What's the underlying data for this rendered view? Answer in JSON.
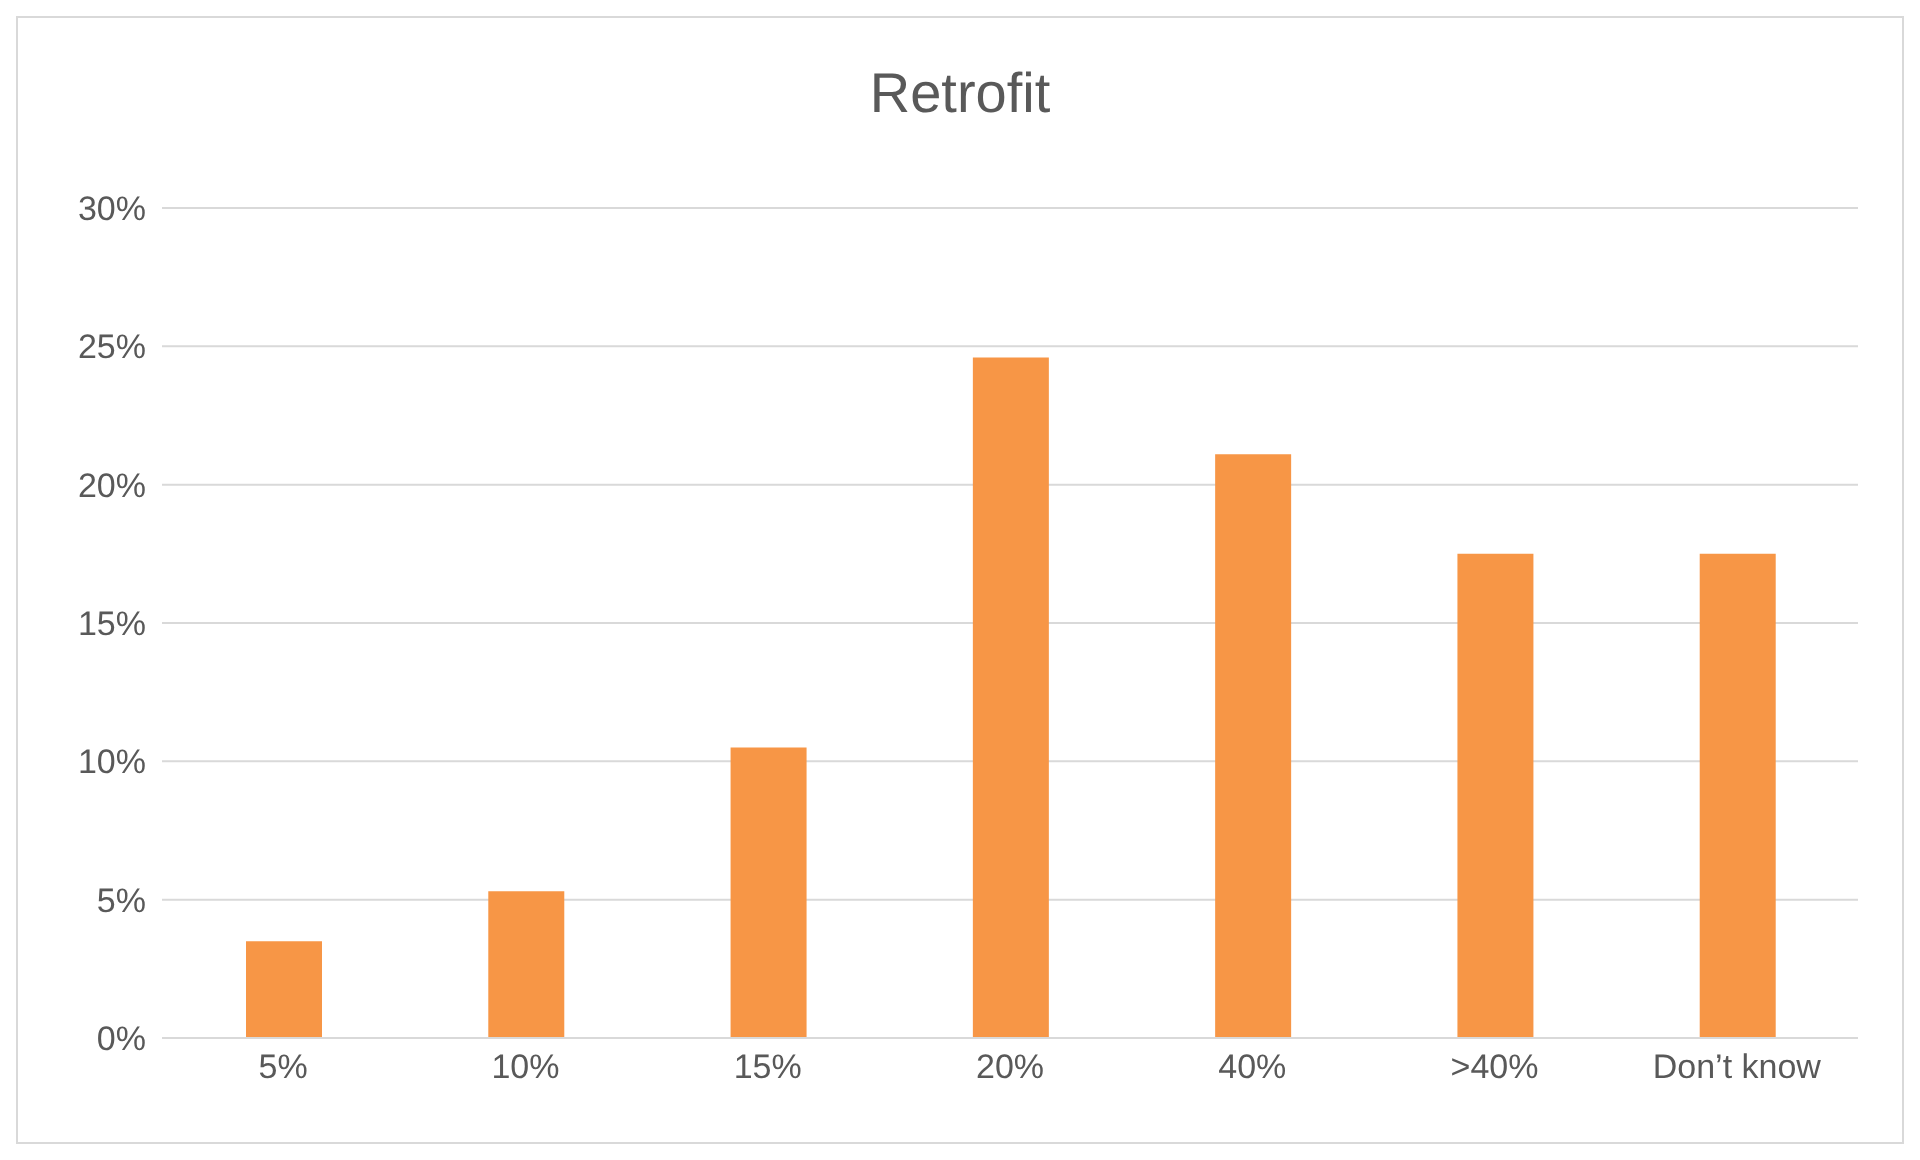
{
  "chart_data": {
    "type": "bar",
    "title": "Retrofit",
    "categories": [
      "5%",
      "10%",
      "15%",
      "20%",
      "40%",
      ">40%",
      "Don’t know"
    ],
    "values": [
      3.5,
      5.3,
      10.5,
      24.6,
      21.1,
      17.5,
      17.5
    ],
    "color": "#f79646",
    "ylim": [
      0,
      30
    ],
    "yticks": [
      {
        "value": 0,
        "label": "0%"
      },
      {
        "value": 5,
        "label": "5%"
      },
      {
        "value": 10,
        "label": "10%"
      },
      {
        "value": 15,
        "label": "15%"
      },
      {
        "value": 20,
        "label": "20%"
      },
      {
        "value": 25,
        "label": "25%"
      },
      {
        "value": 30,
        "label": "30%"
      }
    ],
    "grid": "y",
    "legend": false
  }
}
